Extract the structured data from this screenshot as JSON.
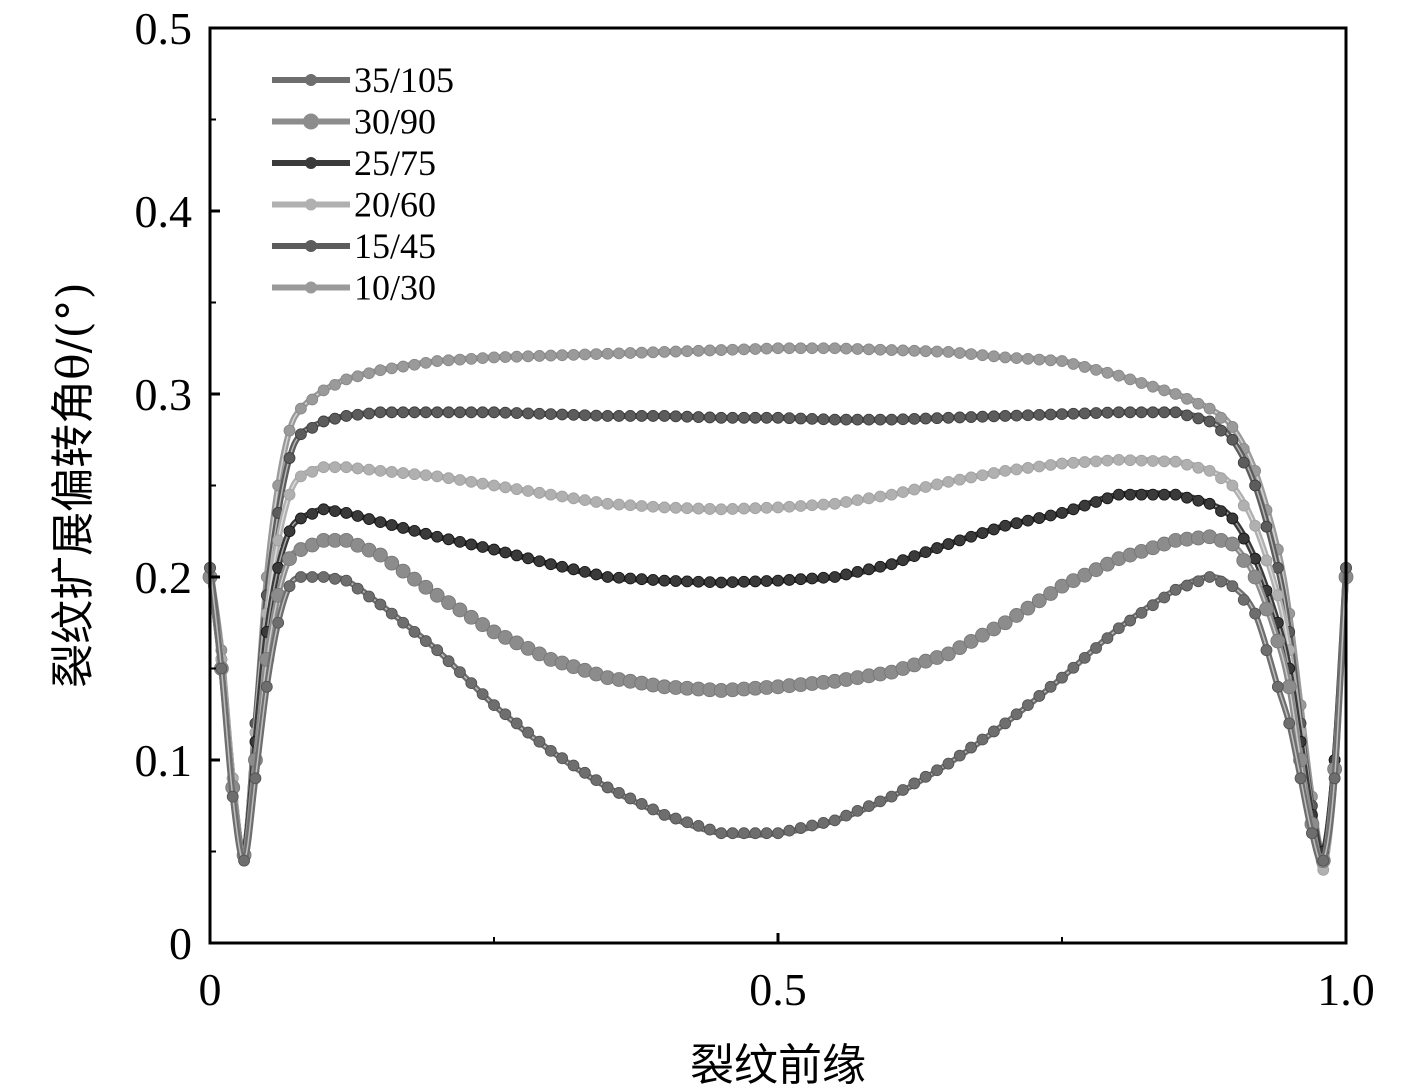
{
  "chart_data": {
    "type": "line",
    "title": "",
    "xlabel": "裂纹前缘",
    "ylabel": "裂纹扩展偏转角θ/(°)",
    "xlim": [
      0,
      1.0
    ],
    "ylim": [
      0,
      0.5
    ],
    "x_ticks": [
      "0",
      "0.5",
      "1.0"
    ],
    "y_ticks": [
      "0",
      "0.1",
      "0.2",
      "0.3",
      "0.4",
      "0.5"
    ],
    "grid": false,
    "legend_position": "top-left",
    "x": [
      0.0,
      0.01,
      0.02,
      0.03,
      0.04,
      0.05,
      0.06,
      0.07,
      0.08,
      0.1,
      0.12,
      0.15,
      0.2,
      0.25,
      0.3,
      0.35,
      0.4,
      0.45,
      0.5,
      0.55,
      0.6,
      0.65,
      0.7,
      0.75,
      0.8,
      0.85,
      0.88,
      0.9,
      0.92,
      0.94,
      0.95,
      0.96,
      0.97,
      0.98,
      0.99,
      1.0
    ],
    "series": [
      {
        "name": "35/105",
        "color": "#6e6e6e",
        "values": [
          0.205,
          0.15,
          0.08,
          0.045,
          0.09,
          0.14,
          0.175,
          0.195,
          0.2,
          0.2,
          0.198,
          0.185,
          0.16,
          0.13,
          0.105,
          0.085,
          0.07,
          0.06,
          0.06,
          0.067,
          0.08,
          0.098,
          0.12,
          0.145,
          0.172,
          0.193,
          0.2,
          0.195,
          0.18,
          0.14,
          0.12,
          0.09,
          0.06,
          0.045,
          0.09,
          0.205
        ]
      },
      {
        "name": "30/90",
        "color": "#8c8c8c",
        "values": [
          0.2,
          0.15,
          0.085,
          0.048,
          0.1,
          0.155,
          0.19,
          0.21,
          0.215,
          0.22,
          0.22,
          0.212,
          0.19,
          0.17,
          0.155,
          0.145,
          0.14,
          0.138,
          0.14,
          0.143,
          0.148,
          0.158,
          0.175,
          0.195,
          0.21,
          0.22,
          0.222,
          0.218,
          0.2,
          0.165,
          0.14,
          0.1,
          0.065,
          0.045,
          0.095,
          0.2
        ]
      },
      {
        "name": "25/75",
        "color": "#3a3a3a",
        "values": [
          0.2,
          0.15,
          0.085,
          0.05,
          0.11,
          0.17,
          0.205,
          0.225,
          0.232,
          0.237,
          0.235,
          0.23,
          0.222,
          0.215,
          0.207,
          0.2,
          0.198,
          0.197,
          0.198,
          0.2,
          0.207,
          0.218,
          0.228,
          0.235,
          0.245,
          0.245,
          0.24,
          0.232,
          0.21,
          0.175,
          0.15,
          0.11,
          0.07,
          0.05,
          0.1,
          0.2
        ]
      },
      {
        "name": "20/60",
        "color": "#b0b0b0",
        "values": [
          0.2,
          0.155,
          0.09,
          0.05,
          0.115,
          0.18,
          0.22,
          0.245,
          0.255,
          0.26,
          0.26,
          0.258,
          0.255,
          0.25,
          0.245,
          0.24,
          0.238,
          0.237,
          0.238,
          0.24,
          0.245,
          0.252,
          0.258,
          0.262,
          0.264,
          0.263,
          0.258,
          0.25,
          0.228,
          0.19,
          0.16,
          0.115,
          0.07,
          0.04,
          0.09,
          0.2
        ]
      },
      {
        "name": "15/45",
        "color": "#5c5c5c",
        "values": [
          0.205,
          0.155,
          0.09,
          0.05,
          0.12,
          0.19,
          0.235,
          0.265,
          0.278,
          0.285,
          0.288,
          0.29,
          0.29,
          0.29,
          0.289,
          0.288,
          0.288,
          0.287,
          0.287,
          0.286,
          0.286,
          0.287,
          0.288,
          0.289,
          0.29,
          0.29,
          0.285,
          0.275,
          0.25,
          0.205,
          0.17,
          0.12,
          0.075,
          0.05,
          0.1,
          0.205
        ]
      },
      {
        "name": "10/30",
        "color": "#9a9a9a",
        "values": [
          0.205,
          0.16,
          0.09,
          0.05,
          0.12,
          0.2,
          0.25,
          0.28,
          0.292,
          0.302,
          0.308,
          0.313,
          0.318,
          0.32,
          0.321,
          0.322,
          0.323,
          0.324,
          0.325,
          0.325,
          0.324,
          0.323,
          0.32,
          0.318,
          0.31,
          0.3,
          0.292,
          0.282,
          0.258,
          0.215,
          0.18,
          0.13,
          0.08,
          0.05,
          0.1,
          0.205
        ]
      }
    ]
  }
}
